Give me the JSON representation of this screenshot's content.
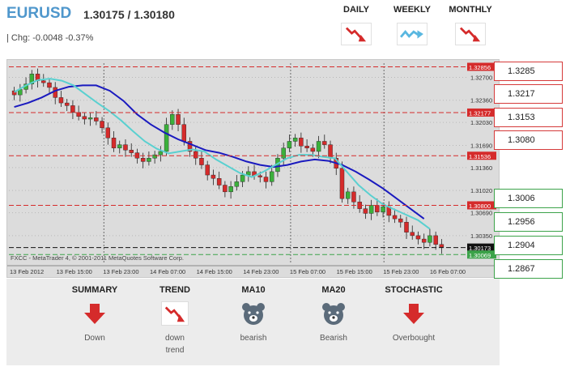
{
  "header": {
    "symbol": "EURUSD",
    "price": "1.30175 / 1.30180",
    "change": "| Chg: -0.0048 -0.37%"
  },
  "timeframes": [
    {
      "label": "DAILY",
      "icon": "trend-down-icon",
      "color": "#d52b2b"
    },
    {
      "label": "WEEKLY",
      "icon": "trend-sideways-icon",
      "color": "#59b7e0"
    },
    {
      "label": "MONTHLY",
      "icon": "trend-down-icon",
      "color": "#d52b2b"
    }
  ],
  "levels": {
    "resistance": [
      "1.3285",
      "1.3217",
      "1.3153",
      "1.3080"
    ],
    "support": [
      "1.3006",
      "1.2956",
      "1.2904",
      "1.2867"
    ]
  },
  "chart_data": {
    "type": "candlestick",
    "watermark": "FXCC - MetaTrader 4, © 2001-2011 MetaQuotes Software Corp.",
    "y_ticks": [
      "1.32700",
      "1.32360",
      "1.32030",
      "1.31690",
      "1.31360",
      "1.31020",
      "1.30690",
      "1.30350"
    ],
    "y_range": [
      1.2994,
      1.3291
    ],
    "x_ticks": [
      "13 Feb 2012",
      "13 Feb 15:00",
      "13 Feb 23:00",
      "14 Feb 07:00",
      "14 Feb 15:00",
      "14 Feb 23:00",
      "15 Feb 07:00",
      "15 Feb 15:00",
      "15 Feb 23:00",
      "16 Feb 07:00"
    ],
    "price_tags": [
      {
        "value": "1.32856",
        "level": 1.32856,
        "color": "#d52b2b"
      },
      {
        "value": "1.32177",
        "level": 1.32177,
        "color": "#d52b2b"
      },
      {
        "value": "1.31536",
        "level": 1.31536,
        "color": "#d52b2b"
      },
      {
        "value": "1.30800",
        "level": 1.308,
        "color": "#d52b2b"
      },
      {
        "value": "1.30173",
        "level": 1.30173,
        "color": "#111111"
      },
      {
        "value": "1.30069",
        "level": 1.30069,
        "color": "#3ca34a"
      }
    ],
    "closes": [
      1.3244,
      1.3252,
      1.326,
      1.3275,
      1.3265,
      1.3262,
      1.3255,
      1.324,
      1.3232,
      1.3228,
      1.3218,
      1.3212,
      1.3208,
      1.321,
      1.3205,
      1.3195,
      1.318,
      1.3165,
      1.317,
      1.3162,
      1.3158,
      1.315,
      1.3145,
      1.315,
      1.3155,
      1.316,
      1.32,
      1.3215,
      1.32,
      1.3175,
      1.316,
      1.315,
      1.314,
      1.3125,
      1.312,
      1.311,
      1.31,
      1.3108,
      1.3115,
      1.3125,
      1.313,
      1.3124,
      1.3122,
      1.3115,
      1.313,
      1.315,
      1.3165,
      1.3175,
      1.318,
      1.3168,
      1.3165,
      1.316,
      1.3175,
      1.317,
      1.315,
      1.3135,
      1.309,
      1.31,
      1.3085,
      1.3075,
      1.3068,
      1.308,
      1.307,
      1.3078,
      1.3065,
      1.306,
      1.3055,
      1.304,
      1.3035,
      1.303,
      1.3025,
      1.3035,
      1.3022,
      1.3018
    ],
    "ma_fast": [
      1.3248,
      1.3258,
      1.3266,
      1.3268,
      1.3265,
      1.3258,
      1.3245,
      1.3232,
      1.322,
      1.3206,
      1.319,
      1.3175,
      1.3164,
      1.3157,
      1.316,
      1.3163,
      1.316,
      1.3148,
      1.3138,
      1.3128,
      1.3122,
      1.313,
      1.314,
      1.315,
      1.3155,
      1.3155,
      1.3152,
      1.315,
      1.313,
      1.311,
      1.3095,
      1.3082,
      1.3074,
      1.3066,
      1.3058,
      1.3045
    ],
    "ma_slow": [
      1.3226,
      1.3232,
      1.324,
      1.325,
      1.3256,
      1.3258,
      1.3258,
      1.325,
      1.3235,
      1.3215,
      1.32,
      1.3188,
      1.3178,
      1.317,
      1.3162,
      1.3158,
      1.3152,
      1.3145,
      1.314,
      1.3137,
      1.314,
      1.3145,
      1.3148,
      1.3146,
      1.314,
      1.313,
      1.3118,
      1.3105,
      1.309,
      1.3075,
      1.306
    ]
  },
  "summary": [
    {
      "title": "SUMMARY",
      "value": "Down",
      "icon": "arrow-down-icon"
    },
    {
      "title": "TREND",
      "value": "down\ntrend",
      "icon": "trend-down-icon"
    },
    {
      "title": "MA10",
      "value": "bearish",
      "icon": "bear-icon"
    },
    {
      "title": "MA20",
      "value": "Bearish",
      "icon": "bear-icon"
    },
    {
      "title": "STOCHASTIC",
      "value": "Overbought",
      "icon": "arrow-down-icon"
    }
  ],
  "colors": {
    "up_candle": "#3bb03b",
    "down_candle": "#d52b2b",
    "ma_fast": "#5ad0d0",
    "ma_slow": "#1a1abf",
    "accent": "#4f97cc"
  }
}
